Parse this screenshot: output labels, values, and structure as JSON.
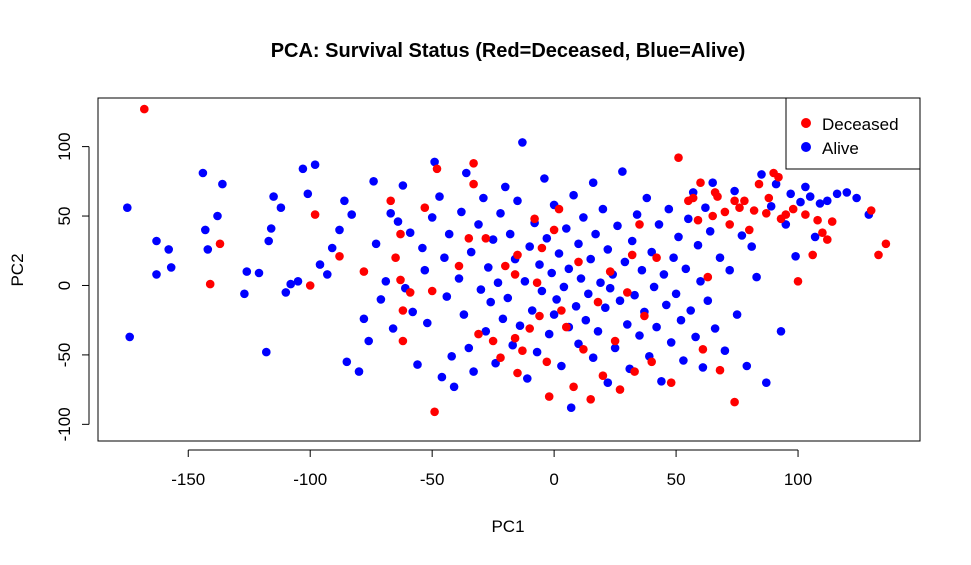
{
  "chart_data": {
    "type": "scatter",
    "title": "PCA: Survival Status (Red=Deceased, Blue=Alive)",
    "xlabel": "PC1",
    "ylabel": "PC2",
    "xlim": [
      -187,
      150
    ],
    "ylim": [
      -112,
      135
    ],
    "x_ticks": [
      -150,
      -100,
      -50,
      0,
      50,
      100
    ],
    "x_tick_labels": [
      "-150",
      "-100",
      "-50",
      "0",
      "50",
      "100"
    ],
    "y_ticks": [
      -100,
      -50,
      0,
      50,
      100
    ],
    "y_tick_labels": [
      "-100",
      "-50",
      "0",
      "50",
      "100"
    ],
    "grid": false,
    "legend_position": "top-right",
    "colors": {
      "Deceased": "#ff0000",
      "Alive": "#0000ff"
    },
    "series": [
      {
        "name": "Deceased",
        "points": [
          [
            -168,
            127
          ],
          [
            -141,
            1
          ],
          [
            -137,
            30
          ],
          [
            -100,
            0
          ],
          [
            -98,
            51
          ],
          [
            -88,
            21
          ],
          [
            -78,
            10
          ],
          [
            -67,
            61
          ],
          [
            -65,
            20
          ],
          [
            -63,
            37
          ],
          [
            -63,
            4
          ],
          [
            -62,
            -40
          ],
          [
            -62,
            -18
          ],
          [
            -59,
            -5
          ],
          [
            -53,
            56
          ],
          [
            -50,
            -4
          ],
          [
            -49,
            -91
          ],
          [
            -48,
            84
          ],
          [
            -39,
            14
          ],
          [
            -35,
            34
          ],
          [
            -33,
            73
          ],
          [
            -33,
            88
          ],
          [
            -31,
            -35
          ],
          [
            -28,
            34
          ],
          [
            -25,
            -40
          ],
          [
            -22,
            -52
          ],
          [
            -20,
            14
          ],
          [
            -16,
            8
          ],
          [
            -16,
            -38
          ],
          [
            -15,
            22
          ],
          [
            -15,
            -63
          ],
          [
            -13,
            -47
          ],
          [
            -10,
            -31
          ],
          [
            -8,
            48
          ],
          [
            -7,
            2
          ],
          [
            -6,
            -22
          ],
          [
            -5,
            27
          ],
          [
            -3,
            -55
          ],
          [
            -2,
            -80
          ],
          [
            0,
            40
          ],
          [
            2,
            55
          ],
          [
            3,
            -18
          ],
          [
            5,
            -30
          ],
          [
            8,
            -73
          ],
          [
            10,
            17
          ],
          [
            12,
            -46
          ],
          [
            15,
            -82
          ],
          [
            18,
            -12
          ],
          [
            20,
            -65
          ],
          [
            23,
            10
          ],
          [
            25,
            -40
          ],
          [
            27,
            -75
          ],
          [
            30,
            -5
          ],
          [
            32,
            22
          ],
          [
            33,
            -62
          ],
          [
            35,
            44
          ],
          [
            37,
            -22
          ],
          [
            40,
            -55
          ],
          [
            42,
            20
          ],
          [
            48,
            -70
          ],
          [
            51,
            92
          ],
          [
            55,
            61
          ],
          [
            57,
            63
          ],
          [
            59,
            47
          ],
          [
            60,
            74
          ],
          [
            61,
            -46
          ],
          [
            63,
            6
          ],
          [
            65,
            50
          ],
          [
            66,
            67
          ],
          [
            67,
            64
          ],
          [
            68,
            -61
          ],
          [
            70,
            53
          ],
          [
            72,
            44
          ],
          [
            74,
            61
          ],
          [
            74,
            -84
          ],
          [
            76,
            56
          ],
          [
            78,
            61
          ],
          [
            80,
            40
          ],
          [
            82,
            54
          ],
          [
            84,
            73
          ],
          [
            87,
            52
          ],
          [
            88,
            63
          ],
          [
            90,
            81
          ],
          [
            92,
            78
          ],
          [
            93,
            48
          ],
          [
            95,
            51
          ],
          [
            98,
            55
          ],
          [
            100,
            3
          ],
          [
            103,
            51
          ],
          [
            106,
            22
          ],
          [
            108,
            47
          ],
          [
            110,
            38
          ],
          [
            112,
            33
          ],
          [
            114,
            46
          ],
          [
            130,
            54
          ],
          [
            133,
            22
          ],
          [
            136,
            30
          ]
        ]
      },
      {
        "name": "Alive",
        "points": [
          [
            -175,
            56
          ],
          [
            -174,
            -37
          ],
          [
            -163,
            32
          ],
          [
            -163,
            8
          ],
          [
            -158,
            26
          ],
          [
            -157,
            13
          ],
          [
            -144,
            81
          ],
          [
            -143,
            40
          ],
          [
            -142,
            26
          ],
          [
            -138,
            50
          ],
          [
            -136,
            73
          ],
          [
            -127,
            -6
          ],
          [
            -126,
            10
          ],
          [
            -121,
            9
          ],
          [
            -118,
            -48
          ],
          [
            -117,
            32
          ],
          [
            -116,
            41
          ],
          [
            -115,
            64
          ],
          [
            -112,
            56
          ],
          [
            -110,
            -5
          ],
          [
            -108,
            1
          ],
          [
            -105,
            3
          ],
          [
            -103,
            84
          ],
          [
            -101,
            66
          ],
          [
            -98,
            87
          ],
          [
            -96,
            15
          ],
          [
            -93,
            8
          ],
          [
            -91,
            27
          ],
          [
            -88,
            40
          ],
          [
            -86,
            61
          ],
          [
            -85,
            -55
          ],
          [
            -83,
            51
          ],
          [
            -80,
            -62
          ],
          [
            -78,
            -24
          ],
          [
            -76,
            -40
          ],
          [
            -74,
            75
          ],
          [
            -73,
            30
          ],
          [
            -71,
            -10
          ],
          [
            -69,
            3
          ],
          [
            -67,
            52
          ],
          [
            -66,
            -31
          ],
          [
            -64,
            46
          ],
          [
            -62,
            72
          ],
          [
            -61,
            -2
          ],
          [
            -59,
            38
          ],
          [
            -58,
            -19
          ],
          [
            -56,
            -57
          ],
          [
            -54,
            27
          ],
          [
            -53,
            11
          ],
          [
            -52,
            -27
          ],
          [
            -50,
            49
          ],
          [
            -49,
            89
          ],
          [
            -47,
            64
          ],
          [
            -46,
            -66
          ],
          [
            -45,
            20
          ],
          [
            -44,
            -8
          ],
          [
            -43,
            37
          ],
          [
            -42,
            -51
          ],
          [
            -41,
            -73
          ],
          [
            -39,
            5
          ],
          [
            -38,
            53
          ],
          [
            -37,
            -21
          ],
          [
            -36,
            81
          ],
          [
            -35,
            -45
          ],
          [
            -34,
            24
          ],
          [
            -33,
            -62
          ],
          [
            -31,
            44
          ],
          [
            -30,
            -3
          ],
          [
            -29,
            63
          ],
          [
            -28,
            -33
          ],
          [
            -27,
            13
          ],
          [
            -26,
            -12
          ],
          [
            -25,
            33
          ],
          [
            -24,
            -56
          ],
          [
            -23,
            2
          ],
          [
            -22,
            52
          ],
          [
            -21,
            -24
          ],
          [
            -20,
            71
          ],
          [
            -19,
            -9
          ],
          [
            -18,
            37
          ],
          [
            -17,
            -43
          ],
          [
            -16,
            19
          ],
          [
            -15,
            61
          ],
          [
            -14,
            -29
          ],
          [
            -13,
            103
          ],
          [
            -12,
            3
          ],
          [
            -11,
            -67
          ],
          [
            -10,
            28
          ],
          [
            -9,
            -18
          ],
          [
            -8,
            45
          ],
          [
            -7,
            -48
          ],
          [
            -6,
            15
          ],
          [
            -5,
            -4
          ],
          [
            -4,
            77
          ],
          [
            -3,
            34
          ],
          [
            -2,
            -35
          ],
          [
            -1,
            9
          ],
          [
            0,
            58
          ],
          [
            0,
            -21
          ],
          [
            1,
            -10
          ],
          [
            2,
            23
          ],
          [
            3,
            -58
          ],
          [
            4,
            -1
          ],
          [
            5,
            41
          ],
          [
            6,
            -30
          ],
          [
            6,
            12
          ],
          [
            7,
            -88
          ],
          [
            8,
            65
          ],
          [
            9,
            -15
          ],
          [
            10,
            30
          ],
          [
            10,
            -42
          ],
          [
            11,
            5
          ],
          [
            12,
            49
          ],
          [
            13,
            -25
          ],
          [
            14,
            -6
          ],
          [
            15,
            19
          ],
          [
            16,
            -52
          ],
          [
            16,
            74
          ],
          [
            17,
            37
          ],
          [
            18,
            -33
          ],
          [
            19,
            2
          ],
          [
            20,
            55
          ],
          [
            21,
            -16
          ],
          [
            22,
            -70
          ],
          [
            22,
            26
          ],
          [
            23,
            -2
          ],
          [
            24,
            8
          ],
          [
            25,
            -45
          ],
          [
            26,
            43
          ],
          [
            27,
            -11
          ],
          [
            28,
            82
          ],
          [
            29,
            17
          ],
          [
            30,
            -28
          ],
          [
            31,
            -60
          ],
          [
            32,
            32
          ],
          [
            33,
            -7
          ],
          [
            34,
            51
          ],
          [
            35,
            -36
          ],
          [
            36,
            11
          ],
          [
            37,
            -19
          ],
          [
            38,
            63
          ],
          [
            39,
            -51
          ],
          [
            40,
            24
          ],
          [
            41,
            -1
          ],
          [
            42,
            -30
          ],
          [
            43,
            44
          ],
          [
            44,
            -69
          ],
          [
            45,
            8
          ],
          [
            46,
            -14
          ],
          [
            47,
            55
          ],
          [
            48,
            -41
          ],
          [
            49,
            20
          ],
          [
            50,
            -6
          ],
          [
            51,
            35
          ],
          [
            52,
            -25
          ],
          [
            53,
            -54
          ],
          [
            54,
            12
          ],
          [
            55,
            48
          ],
          [
            56,
            -18
          ],
          [
            57,
            67
          ],
          [
            58,
            -37
          ],
          [
            59,
            29
          ],
          [
            60,
            3
          ],
          [
            61,
            -59
          ],
          [
            62,
            56
          ],
          [
            63,
            -11
          ],
          [
            64,
            39
          ],
          [
            65,
            74
          ],
          [
            66,
            -31
          ],
          [
            68,
            20
          ],
          [
            70,
            -47
          ],
          [
            72,
            11
          ],
          [
            74,
            68
          ],
          [
            75,
            -21
          ],
          [
            77,
            36
          ],
          [
            79,
            -58
          ],
          [
            81,
            28
          ],
          [
            83,
            6
          ],
          [
            85,
            80
          ],
          [
            87,
            -70
          ],
          [
            89,
            57
          ],
          [
            91,
            73
          ],
          [
            93,
            -33
          ],
          [
            95,
            44
          ],
          [
            97,
            66
          ],
          [
            99,
            21
          ],
          [
            101,
            60
          ],
          [
            103,
            71
          ],
          [
            105,
            64
          ],
          [
            107,
            35
          ],
          [
            109,
            59
          ],
          [
            112,
            61
          ],
          [
            116,
            66
          ],
          [
            120,
            67
          ],
          [
            124,
            63
          ],
          [
            129,
            51
          ]
        ]
      }
    ]
  }
}
